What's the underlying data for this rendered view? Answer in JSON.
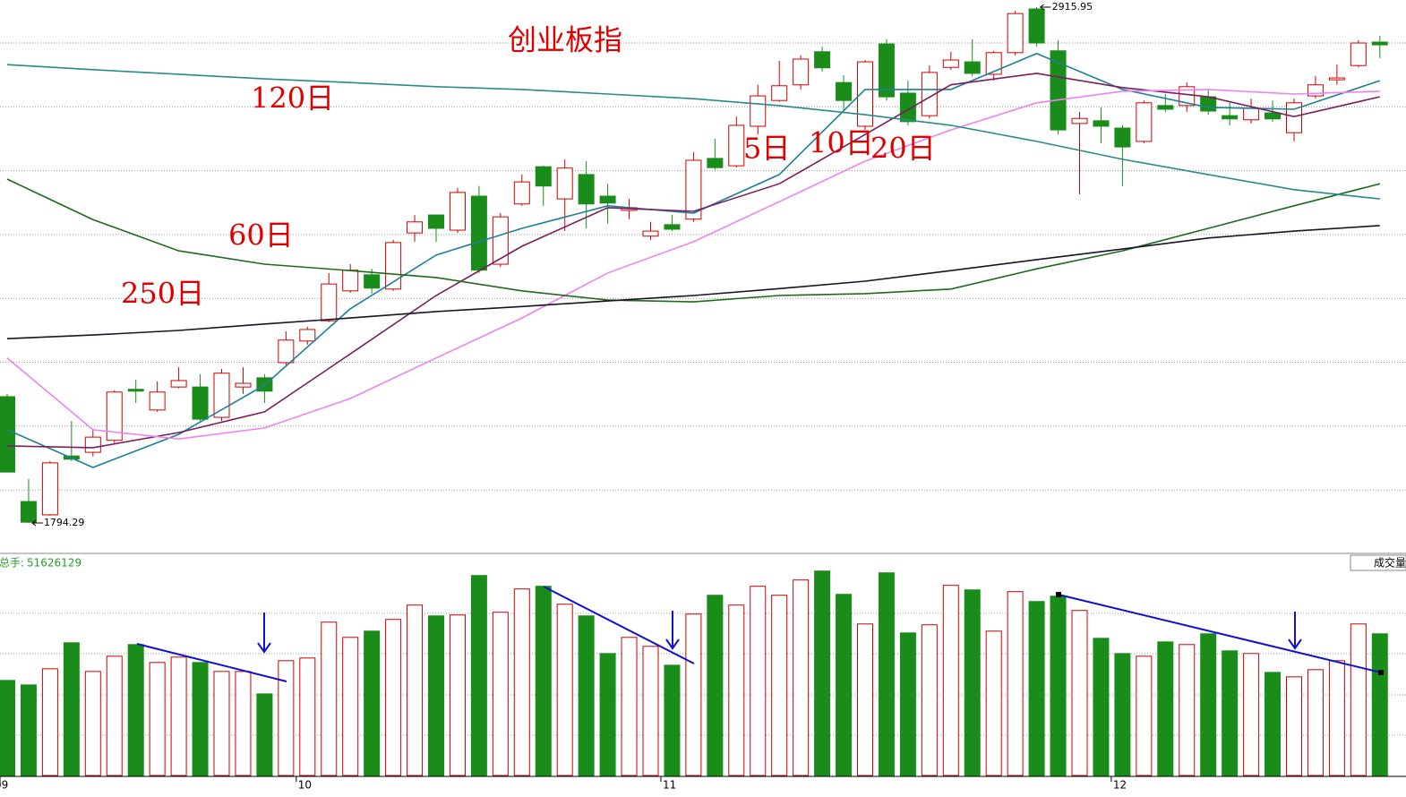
{
  "chart_data": {
    "type": "candlestick",
    "title": "创业板指",
    "up_color": "#d00000",
    "down_color": "#1a8c1a",
    "ylim": [
      1732,
      2931.5
    ],
    "categories": [
      "09",
      null,
      null,
      null,
      null,
      null,
      null,
      null,
      null,
      null,
      null,
      null,
      null,
      null,
      "10",
      null,
      null,
      null,
      null,
      null,
      null,
      null,
      null,
      null,
      null,
      null,
      null,
      null,
      null,
      null,
      null,
      "11",
      null,
      null,
      null,
      null,
      null,
      null,
      null,
      null,
      null,
      null,
      null,
      null,
      null,
      null,
      null,
      null,
      null,
      null,
      null,
      null,
      "12",
      null,
      null,
      null,
      null,
      null,
      null,
      null,
      null,
      null,
      null,
      null,
      null
    ],
    "open": [
      2069,
      1841,
      1812,
      1940,
      1948,
      1974,
      2085,
      2040,
      2090,
      2090,
      2024,
      2090,
      2110,
      2143,
      2190,
      2234,
      2299,
      2334,
      2303,
      2425,
      2464,
      2431,
      2505,
      2357,
      2488,
      2569,
      2499,
      2552,
      2505,
      2474,
      2418,
      2443,
      2455,
      2587,
      2571,
      2657,
      2713,
      2747,
      2819,
      2752,
      2657,
      2836,
      2729,
      2680,
      2785,
      2797,
      2770,
      2817,
      2912,
      2821,
      2663,
      2669,
      2653,
      2624,
      2702,
      2702,
      2721,
      2680,
      2671,
      2686,
      2643,
      2723,
      2758,
      2789,
      2840
    ],
    "high": [
      2075,
      1890,
      1929,
      2016,
      1997,
      2083,
      2106,
      2102,
      2133,
      2118,
      2129,
      2133,
      2118,
      2211,
      2221,
      2338,
      2357,
      2347,
      2410,
      2464,
      2464,
      2523,
      2527,
      2468,
      2552,
      2571,
      2585,
      2581,
      2532,
      2499,
      2449,
      2464,
      2601,
      2630,
      2678,
      2747,
      2799,
      2811,
      2830,
      2768,
      2801,
      2846,
      2756,
      2789,
      2819,
      2846,
      2821,
      2908,
      2915.95,
      2844,
      2688,
      2698,
      2659,
      2713,
      2727,
      2752,
      2737,
      2708,
      2717,
      2713,
      2717,
      2766,
      2791,
      2844,
      2854
    ],
    "low": [
      1905,
      1794.29,
      1810,
      1929,
      1939,
      1968,
      2055,
      2036,
      2087,
      2016,
      2016,
      2075,
      2055,
      2137,
      2182,
      2231,
      2295,
      2293,
      2299,
      2406,
      2406,
      2425,
      2338,
      2351,
      2484,
      2484,
      2429,
      2435,
      2445,
      2455,
      2410,
      2429,
      2449,
      2562,
      2567,
      2639,
      2710,
      2737,
      2776,
      2688,
      2649,
      2713,
      2659,
      2674,
      2780,
      2766,
      2756,
      2811,
      2830,
      2639,
      2509,
      2620,
      2527,
      2620,
      2688,
      2688,
      2682,
      2659,
      2663,
      2667,
      2624,
      2717,
      2747,
      2785,
      2805
    ],
    "close": [
      1905,
      1796,
      1925,
      1933,
      1981,
      2079,
      2081,
      2079,
      2104,
      2020,
      2120,
      2098,
      2081,
      2192,
      2215,
      2314,
      2344,
      2305,
      2404,
      2449,
      2435,
      2513,
      2344,
      2460,
      2536,
      2527,
      2566,
      2488,
      2490,
      2480,
      2429,
      2433,
      2583,
      2567,
      2659,
      2723,
      2745,
      2803,
      2784,
      2713,
      2797,
      2721,
      2667,
      2774,
      2801,
      2772,
      2817,
      2902,
      2838,
      2649,
      2674,
      2657,
      2612,
      2708,
      2694,
      2743,
      2690,
      2673,
      2696,
      2673,
      2708,
      2747,
      2762,
      2838,
      2834
    ],
    "moving_averages": [
      {
        "name": "5日",
        "color": "#1f7f9a",
        "x": [
          0,
          4,
          8,
          12,
          16,
          20,
          24,
          28,
          32,
          36,
          40,
          44,
          48,
          52,
          56,
          60,
          64
        ],
        "values": [
          1997,
          1915,
          1987,
          2094,
          2260,
          2377,
          2435,
          2484,
          2468,
          2552,
          2737,
          2737,
          2815,
          2737,
          2698,
          2694,
          2756
        ]
      },
      {
        "name": "10日",
        "color": "#7a1f5c",
        "x": [
          0,
          4,
          8,
          12,
          16,
          20,
          24,
          28,
          32,
          36,
          40,
          44,
          48,
          52,
          56,
          60,
          64
        ],
        "values": [
          1962,
          1958,
          1991,
          2036,
          2162,
          2289,
          2396,
          2480,
          2472,
          2532,
          2639,
          2747,
          2772,
          2741,
          2721,
          2678,
          2721
        ]
      },
      {
        "name": "20日",
        "color": "#ee82ee",
        "x": [
          0,
          4,
          8,
          12,
          16,
          20,
          24,
          28,
          32,
          36,
          40,
          44,
          48,
          52,
          56,
          60,
          64
        ],
        "values": [
          2153,
          1997,
          1977,
          2001,
          2065,
          2153,
          2240,
          2338,
          2406,
          2493,
          2581,
          2649,
          2708,
          2733,
          2737,
          2727,
          2733
        ]
      },
      {
        "name": "60日",
        "color": "#1e6b1e",
        "x": [
          0,
          4,
          8,
          12,
          16,
          20,
          24,
          28,
          32,
          36,
          40,
          44,
          48,
          52,
          56,
          60,
          64
        ],
        "values": [
          2542,
          2454,
          2386,
          2357,
          2343,
          2328,
          2299,
          2279,
          2275,
          2289,
          2293,
          2303,
          2347,
          2386,
          2435,
          2484,
          2532
        ]
      },
      {
        "name": "120日",
        "color": "#2a8a8a",
        "x": [
          0,
          4,
          8,
          12,
          16,
          20,
          24,
          28,
          32,
          36,
          40,
          44,
          48,
          52,
          56,
          60,
          64
        ],
        "values": [
          2791,
          2780,
          2770,
          2760,
          2752,
          2743,
          2737,
          2727,
          2717,
          2702,
          2682,
          2659,
          2624,
          2585,
          2552,
          2519,
          2499
        ]
      },
      {
        "name": "250日",
        "color": "#151525",
        "x": [
          0,
          4,
          8,
          12,
          16,
          20,
          24,
          28,
          32,
          36,
          40,
          44,
          48,
          52,
          56,
          60,
          64
        ],
        "values": [
          2195,
          2203,
          2213,
          2227,
          2240,
          2254,
          2265,
          2277,
          2289,
          2304,
          2320,
          2343,
          2367,
          2390,
          2414,
          2429,
          2441
        ]
      }
    ],
    "volume": {
      "label": "总手:",
      "title": "成交量",
      "ylim": [
        0,
        77000000
      ],
      "values": [
        34635000,
        33002000,
        38883000,
        48359000,
        37903000,
        43458000,
        47706000,
        41171000,
        43131000,
        41171000,
        37903000,
        37903000,
        29734000,
        41824000,
        42804000,
        55874000,
        50320000,
        52607000,
        56855000,
        62083000,
        58162000,
        58488000,
        72865000,
        59469000,
        67964000,
        68944000,
        62409000,
        58162000,
        44438000,
        50320000,
        47052000,
        40190000,
        58815000,
        65677000,
        62083000,
        68944000,
        65677000,
        71232000,
        74499000,
        66004000,
        55221000,
        73846000,
        51953000,
        54894000,
        69271000,
        67637000,
        52607000,
        66984000,
        63390000,
        65350000,
        60122000,
        49993000,
        44438000,
        43458000,
        48686000,
        47706000,
        51627000,
        45418000,
        44438000,
        37576000,
        35943000,
        38557000,
        41824000,
        55221000,
        51626129
      ]
    }
  }
}
